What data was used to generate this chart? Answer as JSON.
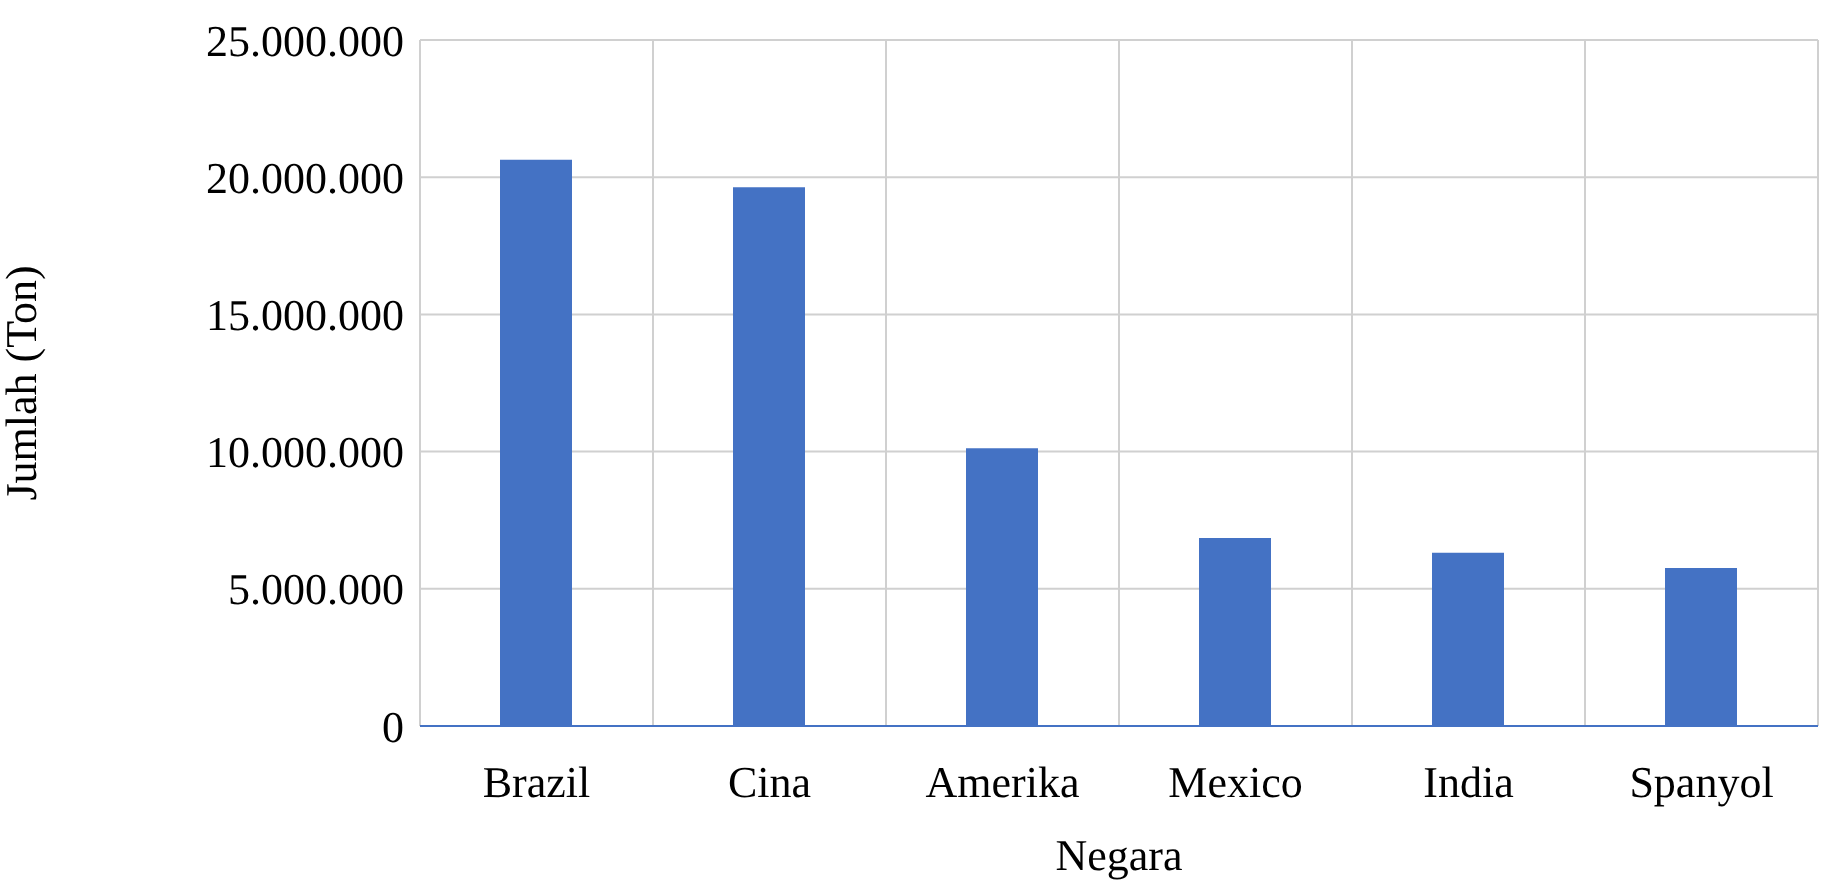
{
  "chart_data": {
    "type": "bar",
    "xlabel": "Negara",
    "ylabel": "Jumlah (Ton)",
    "categories": [
      "Brazil",
      "Cina",
      "Amerika",
      "Mexico",
      "India",
      "Spanyol"
    ],
    "values": [
      20640000,
      19630000,
      10120000,
      6850000,
      6310000,
      5760000
    ],
    "color": "#4472c4",
    "ylim": [
      0,
      25000000
    ],
    "yticks": [
      {
        "value": 0,
        "label": "0"
      },
      {
        "value": 5000000,
        "label": "5.000.000"
      },
      {
        "value": 10000000,
        "label": "10.000.000"
      },
      {
        "value": 15000000,
        "label": "15.000.000"
      },
      {
        "value": 20000000,
        "label": "20.000.000"
      },
      {
        "value": 25000000,
        "label": "25.000.000"
      }
    ],
    "grid": true
  }
}
